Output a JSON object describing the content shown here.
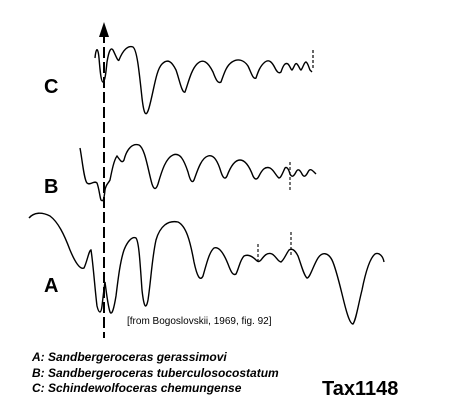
{
  "figure": {
    "rows": [
      {
        "key": "c",
        "label": "C"
      },
      {
        "key": "b",
        "label": "B"
      },
      {
        "key": "a",
        "label": "A"
      }
    ],
    "source_note": "[from Bogoslovskii, 1969, fig. 92]",
    "legend": [
      {
        "key": "A",
        "text": "A: Sandbergeroceras gerassimovi"
      },
      {
        "key": "B",
        "text": "B: Sandbergeroceras tuberculosocostatum"
      },
      {
        "key": "C",
        "text": "C: Schindewolfoceras chemungense"
      }
    ],
    "tax_id": "Tax1148",
    "line_color": "#000000"
  }
}
